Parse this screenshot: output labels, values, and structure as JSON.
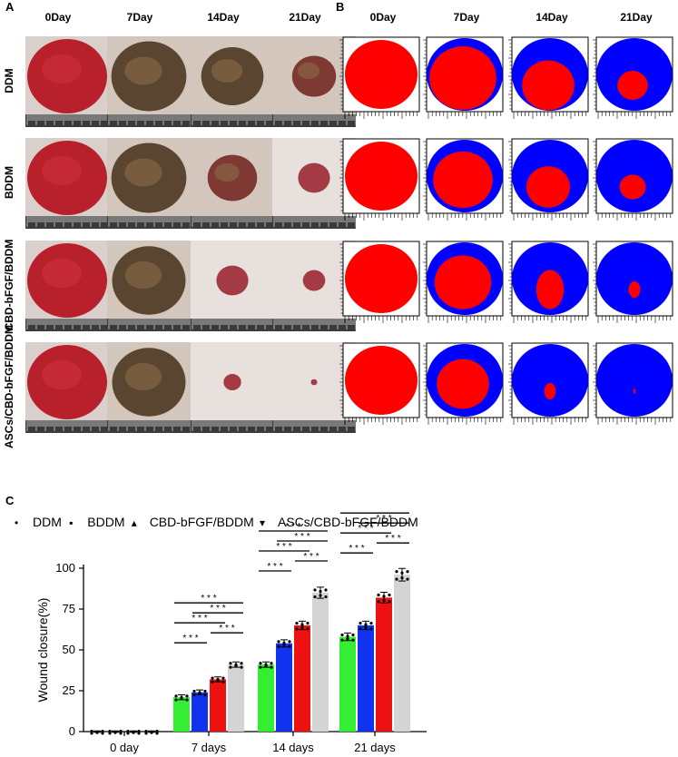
{
  "panels": {
    "a_letter": "A",
    "b_letter": "B",
    "c_letter": "C"
  },
  "columns": [
    "0Day",
    "7Day",
    "14Day",
    "21Day"
  ],
  "rows": [
    "DDM",
    "BDDM",
    "CBD-bFGF/BDDM",
    "ASCs/CBD-bFGF/BDDM"
  ],
  "photo_wound_fraction": [
    [
      1.0,
      0.94,
      0.78,
      0.55
    ],
    [
      1.0,
      0.94,
      0.62,
      0.4
    ],
    [
      1.0,
      0.92,
      0.4,
      0.28
    ],
    [
      1.0,
      0.92,
      0.22,
      0.08
    ]
  ],
  "trace_residual": [
    [
      1.0,
      0.92,
      0.72,
      0.42
    ],
    [
      1.0,
      0.82,
      0.6,
      0.36
    ],
    [
      1.0,
      0.78,
      0.38,
      0.16
    ],
    [
      1.0,
      0.72,
      0.16,
      0.03
    ]
  ],
  "colors": {
    "wound_red": "#ff0000",
    "healed_blue": "#0000ff",
    "ddm": "#33ee33",
    "bddm": "#1133ee",
    "cbd": "#ee1111",
    "ascs": "#d4d4d4"
  },
  "chart_data": {
    "type": "bar",
    "title": "",
    "ylabel": "Wound closure(%)",
    "xlabel": "",
    "categories": [
      "0 day",
      "7 days",
      "14 days",
      "21 days"
    ],
    "ylim": [
      0,
      100
    ],
    "yticks": [
      0,
      25,
      50,
      75,
      100
    ],
    "legend_position": "top",
    "legend_markers": [
      "•",
      "▪",
      "▴",
      "▾"
    ],
    "series": [
      {
        "name": "DDM",
        "values": [
          0,
          21,
          41,
          58
        ]
      },
      {
        "name": "BDDM",
        "values": [
          0,
          24,
          54,
          65
        ]
      },
      {
        "name": "CBD-bFGF/BDDM",
        "values": [
          0,
          32,
          65,
          82
        ]
      },
      {
        "name": "ASCs/CBD-bFGF/BDDM",
        "values": [
          0,
          41,
          85,
          96
        ]
      }
    ],
    "significance_label": "* * *"
  }
}
